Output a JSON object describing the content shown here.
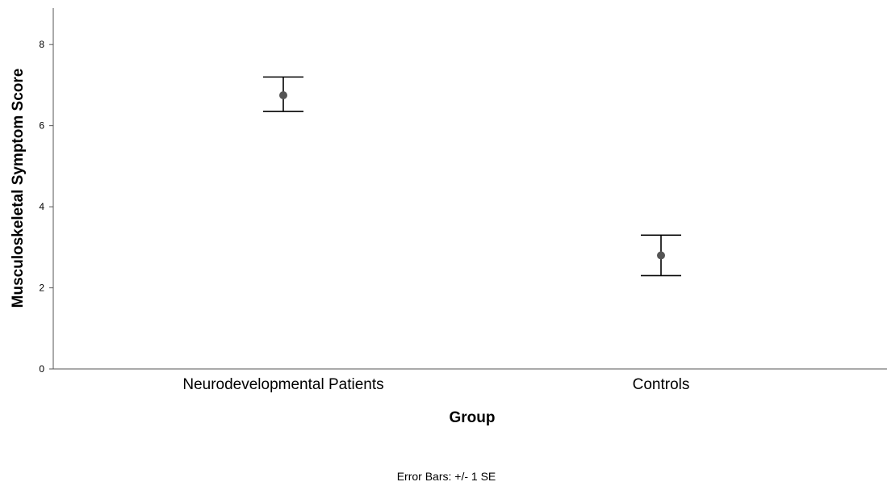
{
  "chart_data": {
    "type": "scatter",
    "categories": [
      "Neurodevelopmental Patients",
      "Controls"
    ],
    "values": [
      6.75,
      2.8
    ],
    "error_low": [
      6.35,
      2.3
    ],
    "error_high": [
      7.2,
      3.3
    ],
    "xlabel": "Group",
    "ylabel": "Musculoskeletal Symptom Score",
    "ylim": [
      0,
      8.9
    ],
    "yticks": [
      "0",
      "2",
      "4",
      "6",
      "8"
    ],
    "grid": false,
    "footnote": "Error Bars: +/- 1 SE",
    "colors": {
      "point": "#555555",
      "error_bar": "#000000",
      "axis": "#555555"
    }
  }
}
